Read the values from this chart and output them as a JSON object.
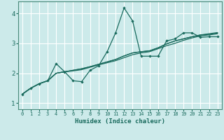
{
  "xlabel": "Humidex (Indice chaleur)",
  "bg_color": "#cceaea",
  "grid_color": "#ffffff",
  "line_color": "#1a6b5e",
  "xlim": [
    -0.5,
    23.5
  ],
  "ylim": [
    0.8,
    4.4
  ],
  "xticks": [
    0,
    1,
    2,
    3,
    4,
    5,
    6,
    7,
    8,
    9,
    10,
    11,
    12,
    13,
    14,
    15,
    16,
    17,
    18,
    19,
    20,
    21,
    22,
    23
  ],
  "yticks": [
    1,
    2,
    3,
    4
  ],
  "series1_x": [
    0,
    1,
    2,
    3,
    4,
    5,
    6,
    7,
    8,
    9,
    10,
    11,
    12,
    13,
    14,
    15,
    16,
    17,
    18,
    19,
    20,
    21,
    22,
    23
  ],
  "series1_y": [
    1.3,
    1.5,
    1.65,
    1.75,
    2.32,
    2.05,
    1.75,
    1.72,
    2.1,
    2.25,
    2.72,
    3.35,
    4.18,
    3.75,
    2.57,
    2.57,
    2.57,
    3.08,
    3.15,
    3.35,
    3.35,
    3.2,
    3.22,
    3.22
  ],
  "series2_x": [
    0,
    1,
    2,
    3,
    4,
    5,
    6,
    7,
    8,
    9,
    10,
    11,
    12,
    13,
    14,
    15,
    16,
    17,
    18,
    19,
    20,
    21,
    22,
    23
  ],
  "series2_y": [
    1.3,
    1.5,
    1.65,
    1.75,
    2.0,
    2.05,
    2.08,
    2.12,
    2.2,
    2.28,
    2.35,
    2.42,
    2.52,
    2.62,
    2.68,
    2.72,
    2.82,
    2.92,
    3.0,
    3.1,
    3.18,
    3.25,
    3.28,
    3.32
  ],
  "series3_x": [
    0,
    1,
    2,
    3,
    4,
    5,
    6,
    7,
    8,
    9,
    10,
    11,
    12,
    13,
    14,
    15,
    16,
    17,
    18,
    19,
    20,
    21,
    22,
    23
  ],
  "series3_y": [
    1.3,
    1.5,
    1.65,
    1.75,
    2.0,
    2.05,
    2.1,
    2.15,
    2.22,
    2.3,
    2.38,
    2.46,
    2.58,
    2.68,
    2.72,
    2.75,
    2.85,
    2.98,
    3.08,
    3.15,
    3.22,
    3.28,
    3.32,
    3.36
  ],
  "series4_x": [
    0,
    1,
    2,
    3,
    4,
    5,
    6,
    7,
    8,
    9,
    10,
    11,
    12,
    13,
    14,
    15,
    16,
    17,
    18,
    19,
    20,
    21,
    22,
    23
  ],
  "series4_y": [
    1.3,
    1.5,
    1.65,
    1.75,
    2.0,
    2.05,
    2.1,
    2.15,
    2.22,
    2.3,
    2.38,
    2.46,
    2.58,
    2.68,
    2.72,
    2.75,
    2.85,
    2.98,
    3.08,
    3.15,
    3.22,
    3.28,
    3.3,
    3.34
  ]
}
